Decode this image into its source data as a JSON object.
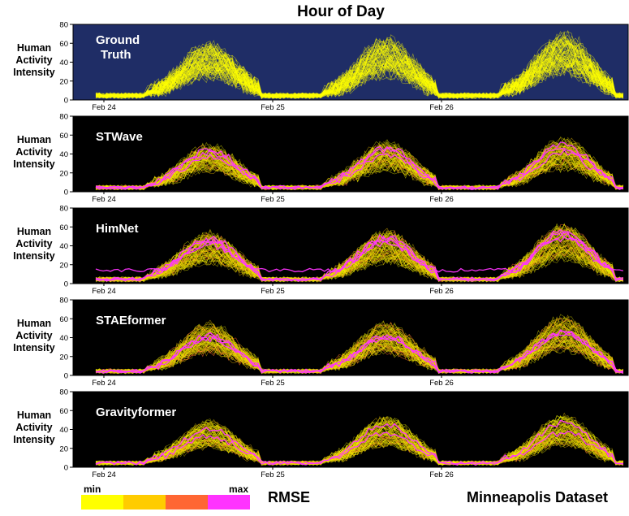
{
  "figure": {
    "title": "Hour of Day",
    "ylabel_lines": [
      "Human",
      "Activity",
      "Intensity"
    ],
    "dataset_label": "Minneapolis Dataset"
  },
  "colorbar": {
    "label": "RMSE",
    "min_label": "min",
    "max_label": "max",
    "colors": [
      "#ffff00",
      "#ffcc00",
      "#ff6633",
      "#ff33ff"
    ]
  },
  "chart_data": [
    {
      "type": "line",
      "label": "Ground Truth",
      "background": "#1f2d66",
      "yticks": [
        0,
        20,
        40,
        60,
        80
      ],
      "ylim": [
        0,
        80
      ],
      "xticks": [
        "Feb 24",
        "Feb 25",
        "Feb 26"
      ],
      "days": 3,
      "peaks": [
        50,
        55,
        60
      ],
      "jitter": 16,
      "highlight": "none"
    },
    {
      "type": "line",
      "label": "STWave",
      "background": "#000000",
      "yticks": [
        0,
        20,
        40,
        60,
        80
      ],
      "ylim": [
        0,
        80
      ],
      "xticks": [
        "Feb 24",
        "Feb 25",
        "Feb 26"
      ],
      "days": 3,
      "peaks": [
        42,
        45,
        48
      ],
      "jitter": 11,
      "highlight": "moderate"
    },
    {
      "type": "line",
      "label": "HimNet",
      "background": "#000000",
      "yticks": [
        0,
        20,
        40,
        60,
        80
      ],
      "ylim": [
        0,
        80
      ],
      "xticks": [
        "Feb 24",
        "Feb 25",
        "Feb 26"
      ],
      "days": 3,
      "peaks": [
        44,
        46,
        52
      ],
      "jitter": 12,
      "highlight": "strong"
    },
    {
      "type": "line",
      "label": "STAEformer",
      "background": "#000000",
      "yticks": [
        0,
        20,
        40,
        60,
        80
      ],
      "ylim": [
        0,
        80
      ],
      "xticks": [
        "Feb 24",
        "Feb 25",
        "Feb 26"
      ],
      "days": 3,
      "peaks": [
        46,
        46,
        52
      ],
      "jitter": 11,
      "highlight": "moderate"
    },
    {
      "type": "line",
      "label": "Gravityformer",
      "background": "#000000",
      "yticks": [
        0,
        20,
        40,
        60,
        80
      ],
      "ylim": [
        0,
        80
      ],
      "xticks": [
        "Feb 24",
        "Feb 25",
        "Feb 26"
      ],
      "days": 3,
      "peaks": [
        40,
        44,
        46
      ],
      "jitter": 10,
      "highlight": "light"
    }
  ]
}
